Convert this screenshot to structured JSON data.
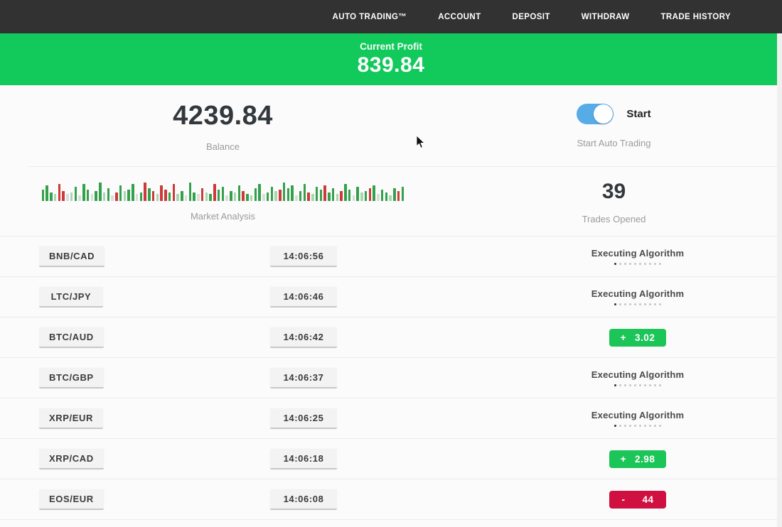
{
  "nav": {
    "items": [
      "AUTO TRADING™",
      "ACCOUNT",
      "DEPOSIT",
      "WITHDRAW",
      "TRADE HISTORY"
    ]
  },
  "profit_banner": {
    "label": "Current Profit",
    "value": "839.84",
    "color": "#12c95b"
  },
  "account": {
    "balance": "4239.84",
    "balance_label": "Balance",
    "toggle_label": "Start",
    "toggle_sublabel": "Start Auto Trading",
    "toggle_on": true,
    "toggle_color": "#57ace8"
  },
  "market": {
    "label": "Market Analysis",
    "trades_opened": "39",
    "trades_opened_label": "Trades Opened",
    "bars": [
      "g16",
      "g22",
      "g12",
      "G10",
      "r24",
      "r14",
      "x10",
      "G12",
      "g20",
      "x8",
      "g24",
      "g16",
      "x10",
      "g14",
      "g26",
      "G12",
      "g18",
      "x8",
      "r12",
      "g22",
      "G14",
      "g16",
      "g24",
      "x10",
      "g12",
      "r26",
      "g18",
      "r14",
      "G10",
      "r22",
      "r16",
      "g12",
      "r24",
      "G10",
      "g14",
      "x8",
      "g26",
      "g12",
      "x10",
      "r18",
      "G12",
      "g10",
      "r24",
      "g16",
      "g20",
      "x8",
      "g14",
      "G12",
      "g22",
      "r14",
      "g10",
      "G8",
      "g18",
      "g24",
      "x10",
      "g12",
      "g20",
      "G14",
      "r16",
      "g26",
      "g18",
      "g22",
      "x8",
      "g14",
      "g24",
      "r12",
      "G10",
      "g20",
      "g16",
      "r22",
      "g12",
      "g18",
      "G10",
      "r14",
      "g24",
      "g16",
      "x8",
      "g20",
      "G12",
      "g14",
      "r18",
      "g22",
      "x10",
      "g16",
      "g12",
      "G8",
      "g18",
      "r14",
      "g20"
    ]
  },
  "status_defaults": {
    "executing_label": "Executing Algorithm",
    "dots": 10
  },
  "colors": {
    "profit": "#1cc558",
    "loss": "#d01041"
  },
  "trades": [
    {
      "pair": "BNB/CAD",
      "time": "14:06:56",
      "status": "executing"
    },
    {
      "pair": "LTC/JPY",
      "time": "14:06:46",
      "status": "executing"
    },
    {
      "pair": "BTC/AUD",
      "time": "14:06:42",
      "status": "profit",
      "sign": "+",
      "value": "3.02"
    },
    {
      "pair": "BTC/GBP",
      "time": "14:06:37",
      "status": "executing"
    },
    {
      "pair": "XRP/EUR",
      "time": "14:06:25",
      "status": "executing"
    },
    {
      "pair": "XRP/CAD",
      "time": "14:06:18",
      "status": "profit",
      "sign": "+",
      "value": "2.98"
    },
    {
      "pair": "EOS/EUR",
      "time": "14:06:08",
      "status": "loss",
      "sign": "-",
      "value": "44"
    }
  ]
}
